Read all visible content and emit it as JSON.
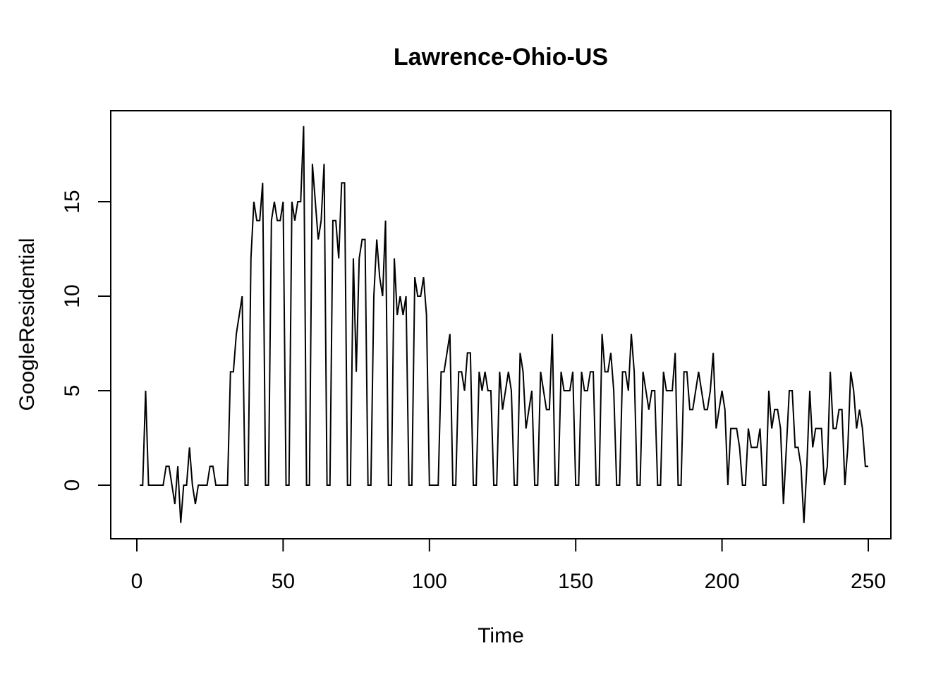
{
  "chart_data": {
    "type": "line",
    "title": "Lawrence-Ohio-US",
    "xlabel": "Time",
    "ylabel": "GoogleResidential",
    "xlim": [
      0,
      250
    ],
    "ylim": [
      -2,
      19
    ],
    "x_ticks": [
      0,
      50,
      100,
      150,
      200,
      250
    ],
    "y_ticks": [
      0,
      5,
      10,
      15
    ],
    "grid": false,
    "legend": "none",
    "colors": {
      "line": "#000000",
      "background": "#ffffff"
    },
    "series": [
      {
        "values": [
          0,
          0,
          5,
          0,
          0,
          0,
          0,
          0,
          0,
          1,
          1,
          0,
          -1,
          1,
          -2,
          0,
          0,
          2,
          0,
          -1,
          0,
          0,
          0,
          0,
          1,
          1,
          0,
          0,
          0,
          0,
          0,
          6,
          6,
          8,
          9,
          10,
          0,
          0,
          12,
          15,
          14,
          14,
          16,
          0,
          0,
          14,
          15,
          14,
          14,
          15,
          0,
          0,
          15,
          14,
          15,
          15,
          19,
          0,
          0,
          17,
          15,
          13,
          14,
          17,
          0,
          0,
          14,
          14,
          12,
          16,
          16,
          0,
          0,
          12,
          6,
          12,
          13,
          13,
          0,
          0,
          10,
          13,
          11,
          10,
          14,
          0,
          0,
          12,
          9,
          10,
          9,
          10,
          0,
          0,
          11,
          10,
          10,
          11,
          9,
          0,
          0,
          0,
          0,
          6,
          6,
          7,
          8,
          0,
          0,
          6,
          6,
          5,
          7,
          7,
          0,
          0,
          6,
          5,
          6,
          5,
          5,
          0,
          0,
          6,
          4,
          5,
          6,
          5,
          0,
          0,
          7,
          6,
          3,
          4,
          5,
          0,
          0,
          6,
          5,
          4,
          4,
          8,
          0,
          0,
          6,
          5,
          5,
          5,
          6,
          0,
          0,
          6,
          5,
          5,
          6,
          6,
          0,
          0,
          8,
          6,
          6,
          7,
          5,
          0,
          0,
          6,
          6,
          5,
          8,
          6,
          0,
          0,
          6,
          5,
          4,
          5,
          5,
          0,
          0,
          6,
          5,
          5,
          5,
          7,
          0,
          0,
          6,
          6,
          4,
          4,
          5,
          6,
          5,
          4,
          4,
          5,
          7,
          3,
          4,
          5,
          4,
          0,
          3,
          3,
          3,
          2,
          0,
          0,
          3,
          2,
          2,
          2,
          3,
          0,
          0,
          5,
          3,
          4,
          4,
          3,
          -1,
          2,
          5,
          5,
          2,
          2,
          1,
          -2,
          1,
          5,
          2,
          3,
          3,
          3,
          0,
          1,
          6,
          3,
          3,
          4,
          4,
          0,
          2,
          6,
          5,
          3,
          4,
          3,
          1,
          1
        ]
      }
    ]
  }
}
